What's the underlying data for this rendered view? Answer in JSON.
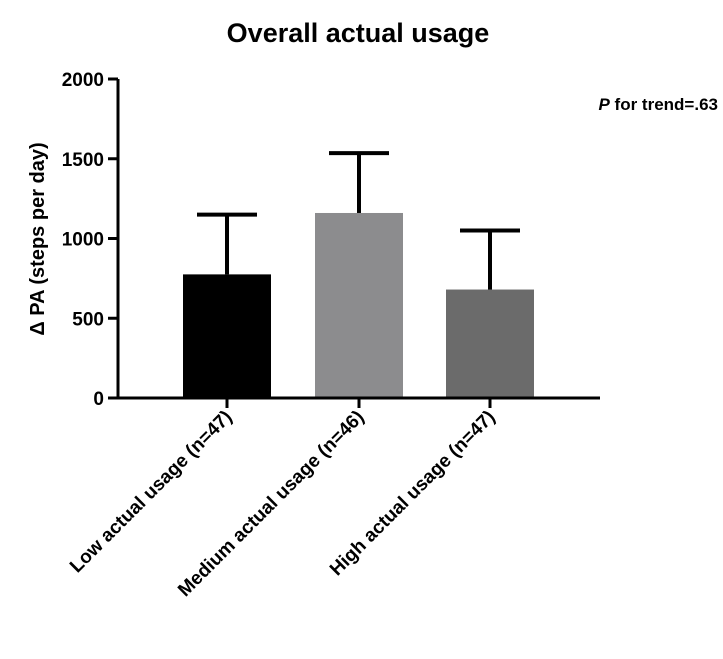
{
  "chart_data": {
    "type": "bar",
    "title": "Overall actual usage",
    "xlabel": "",
    "ylabel": "Δ PA (steps per day)",
    "ylim": [
      0,
      2000
    ],
    "yticks": [
      0,
      500,
      1000,
      1500,
      2000
    ],
    "categories": [
      "Low actual usage (n=47)",
      "Medium actual usage (n=46)",
      "High actual usage (n=47)"
    ],
    "values": [
      775,
      1160,
      680
    ],
    "error_upper": [
      1150,
      1535,
      1050
    ],
    "colors": [
      "#000000",
      "#8c8c8e",
      "#6b6b6b"
    ],
    "annotation": {
      "italic": "P",
      "rest": " for trend=.63"
    },
    "grid": false,
    "legend": "none"
  }
}
